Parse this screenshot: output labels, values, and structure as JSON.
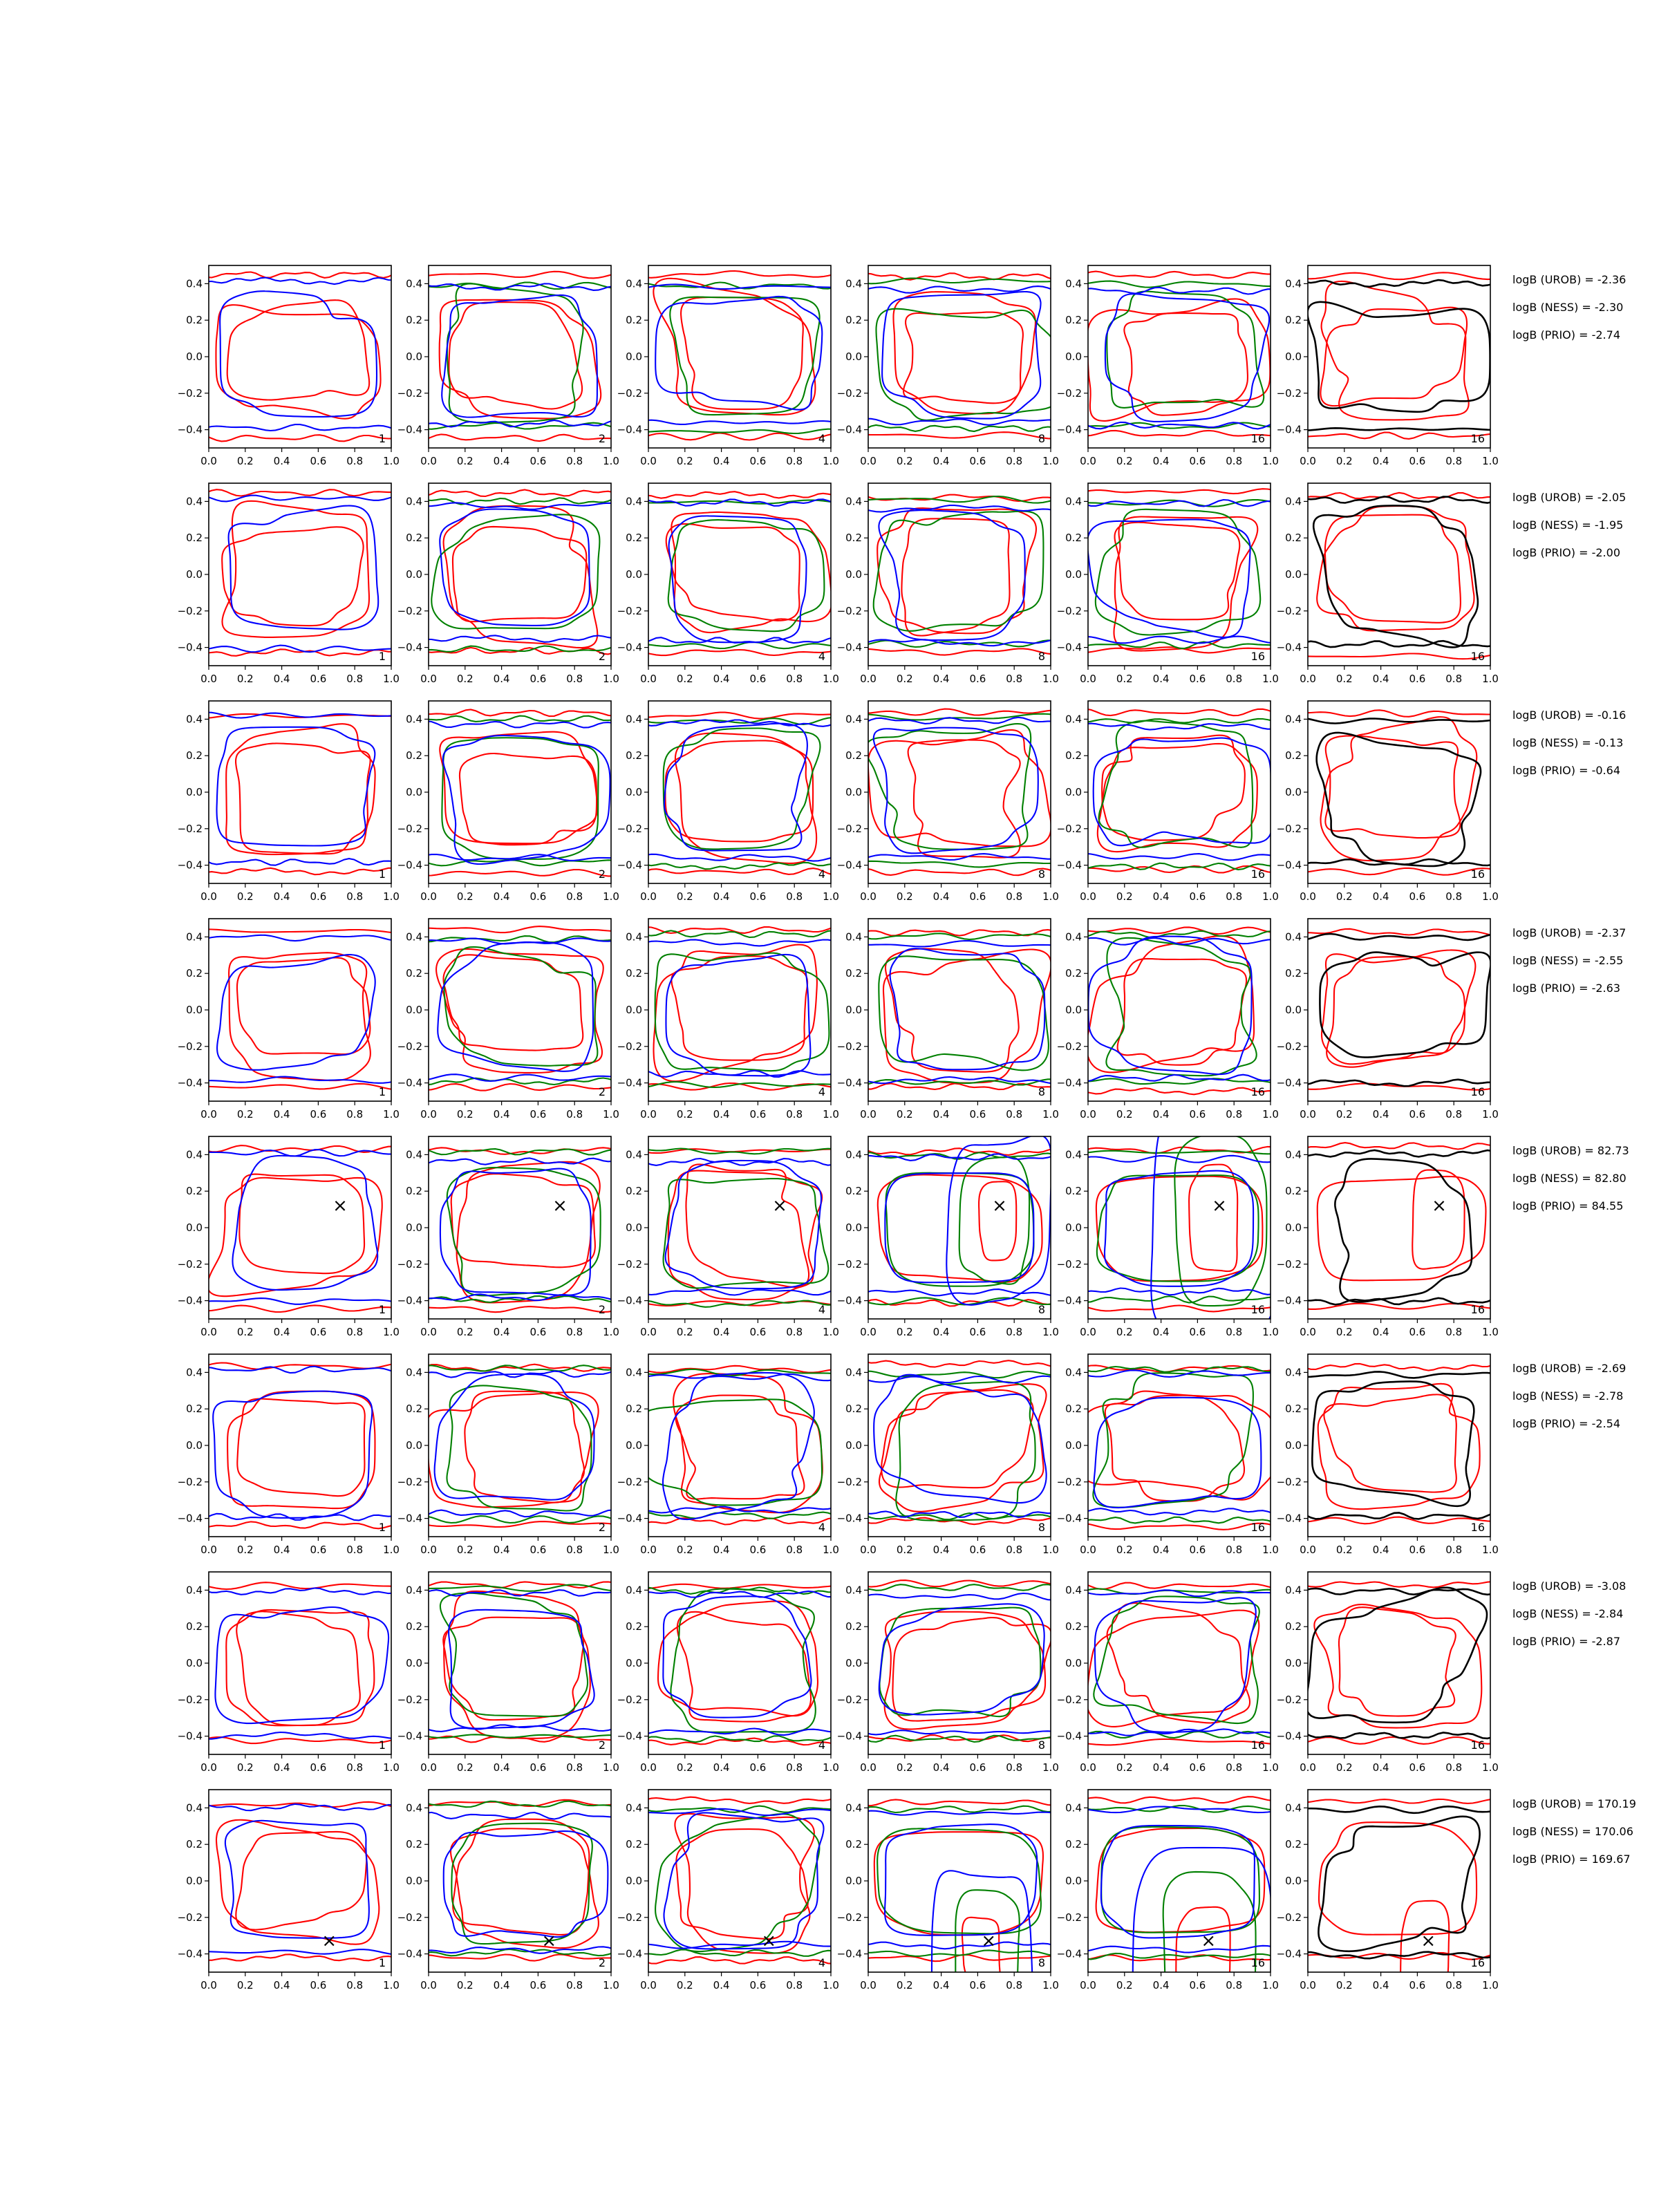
{
  "colors": {
    "red": "#ff0000",
    "blue": "#0000ff",
    "green": "#008000",
    "black": "#000000",
    "axes": "#000000",
    "background": "#ffffff"
  },
  "chart_data": {
    "type": "contour-grid",
    "layout": {
      "rows": 8,
      "cols": 6
    },
    "xlim": [
      0.0,
      1.0
    ],
    "ylim": [
      -0.5,
      0.5
    ],
    "x_ticks": [
      "0.0",
      "0.2",
      "0.4",
      "0.6",
      "0.8",
      "1.0"
    ],
    "y_ticks": [
      "0.4",
      "0.2",
      "0.0",
      "−0.2",
      "−0.4"
    ],
    "panel_labels": [
      "1",
      "2",
      "4",
      "8",
      "16",
      "16"
    ],
    "panel_colors": [
      [
        "red",
        "blue"
      ],
      [
        "red",
        "green",
        "blue"
      ],
      [
        "red",
        "green",
        "blue"
      ],
      [
        "red",
        "green",
        "blue"
      ],
      [
        "red",
        "green",
        "blue"
      ],
      [
        "red",
        "black"
      ]
    ],
    "marker_symbol": "×",
    "rows": [
      {
        "logB": [
          "logB (UROB) = -2.36",
          "logB (NESS) = -2.30",
          "logB (PRIO) = -2.74"
        ],
        "marker": null
      },
      {
        "logB": [
          "logB (UROB) = -2.05",
          "logB (NESS) = -1.95",
          "logB (PRIO) = -2.00"
        ],
        "marker": null
      },
      {
        "logB": [
          "logB (UROB) = -0.16",
          "logB (NESS) = -0.13",
          "logB (PRIO) = -0.64"
        ],
        "marker": null
      },
      {
        "logB": [
          "logB (UROB) = -2.37",
          "logB (NESS) = -2.55",
          "logB (PRIO) = -2.63"
        ],
        "marker": null
      },
      {
        "logB": [
          "logB (UROB) = 82.73",
          "logB (NESS) = 82.80",
          "logB (PRIO) = 84.55"
        ],
        "marker": {
          "x": 0.72,
          "y": 0.12
        }
      },
      {
        "logB": [
          "logB (UROB) = -2.69",
          "logB (NESS) = -2.78",
          "logB (PRIO) = -2.54"
        ],
        "marker": null
      },
      {
        "logB": [
          "logB (UROB) = -3.08",
          "logB (NESS) = -2.84",
          "logB (PRIO) = -2.87"
        ],
        "marker": null
      },
      {
        "logB": [
          "logB (UROB) = 170.19",
          "logB (NESS) = 170.06",
          "logB (PRIO) = 169.67"
        ],
        "marker": {
          "x": 0.66,
          "y": -0.33
        }
      }
    ]
  }
}
